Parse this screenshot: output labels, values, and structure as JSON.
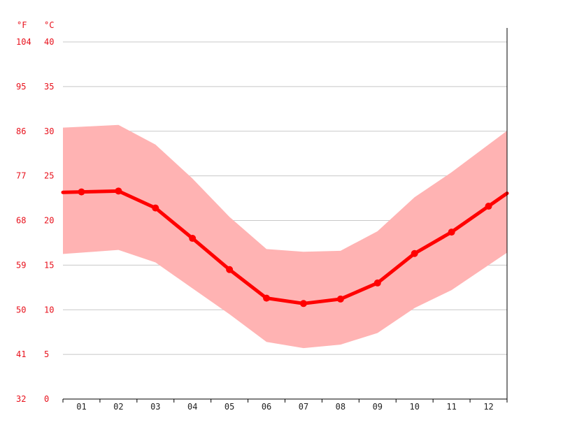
{
  "chart_data": {
    "type": "line",
    "title": "",
    "xlabel": "",
    "ylabel": "",
    "x_unit_labels": [],
    "y_units": {
      "fahrenheit": "°F",
      "celsius": "°C"
    },
    "categories": [
      "01",
      "02",
      "03",
      "04",
      "05",
      "06",
      "07",
      "08",
      "09",
      "10",
      "11",
      "12"
    ],
    "ylim": [
      0,
      40
    ],
    "yticks_celsius": [
      "0",
      "5",
      "10",
      "15",
      "20",
      "25",
      "30",
      "35",
      "40"
    ],
    "yticks_fahrenheit": [
      "32",
      "41",
      "50",
      "59",
      "68",
      "77",
      "86",
      "95",
      "104"
    ],
    "grid": true,
    "series": [
      {
        "role": "mean",
        "values": [
          23.2,
          23.3,
          21.4,
          18.0,
          14.5,
          11.3,
          10.7,
          11.2,
          13.0,
          16.3,
          18.7,
          21.6
        ]
      }
    ],
    "range_band": {
      "min": [
        16.4,
        16.7,
        15.3,
        12.4,
        9.5,
        6.4,
        5.7,
        6.1,
        7.4,
        10.2,
        12.2,
        15.0
      ],
      "max": [
        30.5,
        30.7,
        28.5,
        24.7,
        20.4,
        16.8,
        16.5,
        16.6,
        18.8,
        22.6,
        25.4,
        28.5
      ]
    },
    "colors": {
      "mean_line": "#ff0000",
      "band_fill": "#ffb3b3",
      "axis_text": "#e8111c",
      "month_text": "#222222",
      "grid": "#c8c8c8",
      "axis": "#000000"
    }
  }
}
